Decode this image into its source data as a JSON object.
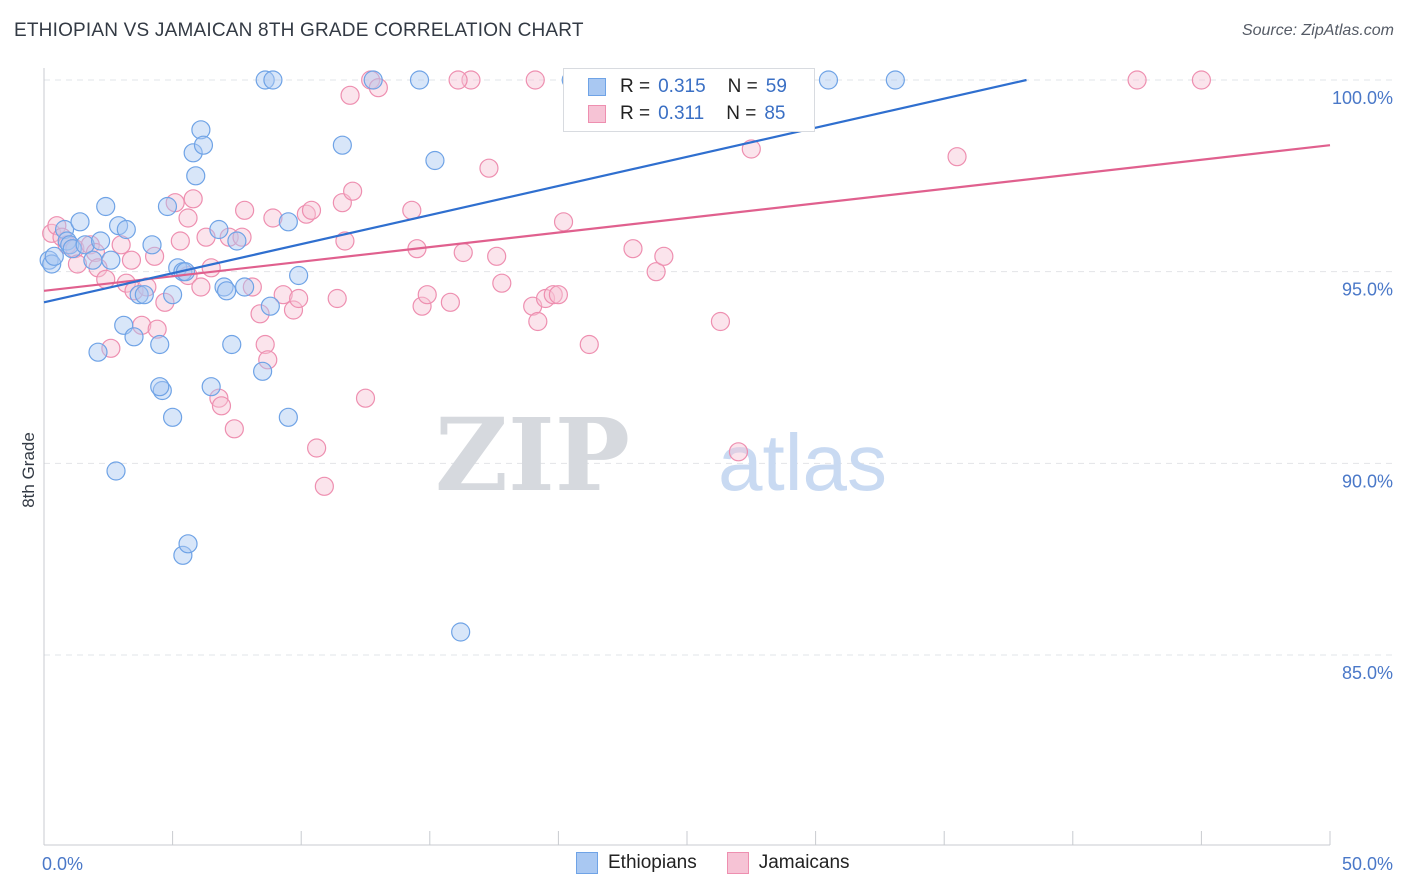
{
  "title": "ETHIOPIAN VS JAMAICAN 8TH GRADE CORRELATION CHART",
  "source": "Source: ZipAtlas.com",
  "watermark": {
    "zip": "ZIP",
    "atlas": "atlas"
  },
  "colors": {
    "blue": "#6fa3e6",
    "blue_fill": "#a9c8f2",
    "blue_line": "#2f6fcf",
    "pink": "#ee8fb0",
    "pink_fill": "#f6c3d5",
    "pink_line": "#e0608e",
    "grid": "#e2e4e8",
    "tick_text": "#4a78c8"
  },
  "legend": {
    "rows": [
      {
        "r_label": "R =",
        "r_value": "0.315",
        "n_label": "N =",
        "n_value": "59"
      },
      {
        "r_label": "R =",
        "r_value": "0.311",
        "n_label": "N =",
        "n_value": "85"
      }
    ]
  },
  "bottom_legend": [
    "Ethiopians",
    "Jamaicans"
  ],
  "chart_data": {
    "type": "scatter",
    "title": "ETHIOPIAN VS JAMAICAN 8TH GRADE CORRELATION CHART",
    "xlabel": "",
    "ylabel": "8th Grade",
    "xlim": [
      0,
      50
    ],
    "ylim": [
      80.3,
      100.9
    ],
    "x_tick_labels": [
      "0.0%",
      "50.0%"
    ],
    "y_ticks": [
      100,
      95,
      90,
      85
    ],
    "y_tick_labels": [
      "100.0%",
      "95.0%",
      "90.0%",
      "85.0%"
    ],
    "grid": true,
    "legend_position": "top-center",
    "series": [
      {
        "name": "Ethiopians",
        "r": 0.315,
        "n": 59,
        "trend": {
          "x": [
            0,
            38.2
          ],
          "y": [
            94.2,
            100
          ]
        },
        "points": [
          [
            0.2,
            95.3
          ],
          [
            0.3,
            95.2
          ],
          [
            0.4,
            95.4
          ],
          [
            0.8,
            96.1
          ],
          [
            0.9,
            95.8
          ],
          [
            1.0,
            95.7
          ],
          [
            1.1,
            95.6
          ],
          [
            1.4,
            96.3
          ],
          [
            1.6,
            95.7
          ],
          [
            1.9,
            95.3
          ],
          [
            2.2,
            95.8
          ],
          [
            2.4,
            96.7
          ],
          [
            2.6,
            95.3
          ],
          [
            2.9,
            96.2
          ],
          [
            3.2,
            96.1
          ],
          [
            3.1,
            93.6
          ],
          [
            3.5,
            93.3
          ],
          [
            3.7,
            94.4
          ],
          [
            3.9,
            94.4
          ],
          [
            4.2,
            95.7
          ],
          [
            4.5,
            93.1
          ],
          [
            4.6,
            91.9
          ],
          [
            4.5,
            92.0
          ],
          [
            4.8,
            96.7
          ],
          [
            5.0,
            94.4
          ],
          [
            5.0,
            91.2
          ],
          [
            5.2,
            95.1
          ],
          [
            5.4,
            95.0
          ],
          [
            5.4,
            87.6
          ],
          [
            5.6,
            87.9
          ],
          [
            5.8,
            98.1
          ],
          [
            5.9,
            97.5
          ],
          [
            6.1,
            98.7
          ],
          [
            6.2,
            98.3
          ],
          [
            6.5,
            92.0
          ],
          [
            6.8,
            96.1
          ],
          [
            7.0,
            94.6
          ],
          [
            7.1,
            94.5
          ],
          [
            7.3,
            93.1
          ],
          [
            7.5,
            95.8
          ],
          [
            7.8,
            94.6
          ],
          [
            8.5,
            92.4
          ],
          [
            8.8,
            94.1
          ],
          [
            8.6,
            100
          ],
          [
            8.9,
            100
          ],
          [
            9.5,
            96.3
          ],
          [
            9.5,
            91.2
          ],
          [
            9.9,
            94.9
          ],
          [
            11.6,
            98.3
          ],
          [
            12.8,
            100
          ],
          [
            14.6,
            100
          ],
          [
            15.2,
            97.9
          ],
          [
            16.2,
            85.6
          ],
          [
            20.5,
            100
          ],
          [
            30.5,
            100
          ],
          [
            33.1,
            100
          ],
          [
            2.8,
            89.8
          ],
          [
            2.1,
            92.9
          ],
          [
            5.5,
            95.0
          ]
        ]
      },
      {
        "name": "Jamaicans",
        "r": 0.311,
        "n": 85,
        "trend": {
          "x": [
            0,
            50
          ],
          "y": [
            94.5,
            98.3
          ]
        },
        "points": [
          [
            0.3,
            96.0
          ],
          [
            0.5,
            96.2
          ],
          [
            0.7,
            95.9
          ],
          [
            0.9,
            95.7
          ],
          [
            1.2,
            95.6
          ],
          [
            1.3,
            95.2
          ],
          [
            1.8,
            95.7
          ],
          [
            2.0,
            95.5
          ],
          [
            2.1,
            95.1
          ],
          [
            2.4,
            94.8
          ],
          [
            2.6,
            93.0
          ],
          [
            3.0,
            95.7
          ],
          [
            3.2,
            94.7
          ],
          [
            3.4,
            95.3
          ],
          [
            3.5,
            94.5
          ],
          [
            3.8,
            93.6
          ],
          [
            4.0,
            94.6
          ],
          [
            4.3,
            95.4
          ],
          [
            4.4,
            93.5
          ],
          [
            4.7,
            94.2
          ],
          [
            5.1,
            96.8
          ],
          [
            5.3,
            95.8
          ],
          [
            5.6,
            94.9
          ],
          [
            5.6,
            96.4
          ],
          [
            5.8,
            96.9
          ],
          [
            6.1,
            94.6
          ],
          [
            6.3,
            95.9
          ],
          [
            6.5,
            95.1
          ],
          [
            6.8,
            91.7
          ],
          [
            6.9,
            91.5
          ],
          [
            7.2,
            95.9
          ],
          [
            7.4,
            90.9
          ],
          [
            7.7,
            95.9
          ],
          [
            7.8,
            96.6
          ],
          [
            8.1,
            94.6
          ],
          [
            8.4,
            93.9
          ],
          [
            8.6,
            93.1
          ],
          [
            8.7,
            92.7
          ],
          [
            8.9,
            96.4
          ],
          [
            9.3,
            94.4
          ],
          [
            9.7,
            94.0
          ],
          [
            9.9,
            94.3
          ],
          [
            10.2,
            96.5
          ],
          [
            10.4,
            96.6
          ],
          [
            10.6,
            90.4
          ],
          [
            10.9,
            89.4
          ],
          [
            11.4,
            94.3
          ],
          [
            11.6,
            96.8
          ],
          [
            11.7,
            95.8
          ],
          [
            11.9,
            99.6
          ],
          [
            12.0,
            97.1
          ],
          [
            12.5,
            91.7
          ],
          [
            12.7,
            100
          ],
          [
            13.0,
            99.8
          ],
          [
            14.3,
            96.6
          ],
          [
            14.5,
            95.6
          ],
          [
            14.7,
            94.1
          ],
          [
            14.9,
            94.4
          ],
          [
            15.8,
            94.2
          ],
          [
            16.3,
            95.5
          ],
          [
            16.6,
            100
          ],
          [
            17.3,
            97.7
          ],
          [
            17.6,
            95.4
          ],
          [
            17.8,
            94.7
          ],
          [
            19.0,
            94.1
          ],
          [
            19.2,
            93.7
          ],
          [
            19.5,
            94.3
          ],
          [
            19.8,
            94.4
          ],
          [
            20.0,
            94.4
          ],
          [
            20.2,
            96.3
          ],
          [
            21.2,
            93.1
          ],
          [
            22.9,
            95.6
          ],
          [
            23.8,
            95.0
          ],
          [
            24.1,
            95.4
          ],
          [
            26.3,
            93.7
          ],
          [
            27.0,
            90.3
          ],
          [
            27.2,
            100
          ],
          [
            27.5,
            98.2
          ],
          [
            28.8,
            100
          ],
          [
            35.5,
            98.0
          ],
          [
            42.5,
            100
          ],
          [
            45.0,
            100
          ],
          [
            20.8,
            100
          ],
          [
            19.1,
            100
          ],
          [
            16.1,
            100
          ]
        ]
      }
    ]
  }
}
